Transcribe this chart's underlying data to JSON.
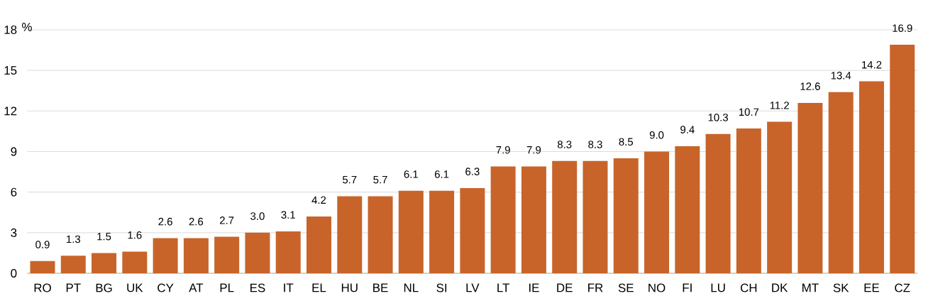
{
  "chart_data": {
    "type": "bar",
    "ylabel": "%",
    "categories": [
      "RO",
      "PT",
      "BG",
      "UK",
      "CY",
      "AT",
      "PL",
      "ES",
      "IT",
      "EL",
      "HU",
      "BE",
      "NL",
      "SI",
      "LV",
      "LT",
      "IE",
      "DE",
      "FR",
      "SE",
      "NO",
      "FI",
      "LU",
      "CH",
      "DK",
      "MT",
      "SK",
      "EE",
      "CZ"
    ],
    "values": [
      0.9,
      1.3,
      1.5,
      1.6,
      2.6,
      2.6,
      2.7,
      3.0,
      3.1,
      4.2,
      5.7,
      5.7,
      6.1,
      6.1,
      6.3,
      7.9,
      7.9,
      8.3,
      8.3,
      8.5,
      9.0,
      9.4,
      10.3,
      10.7,
      11.2,
      12.6,
      13.4,
      14.2,
      16.9
    ],
    "value_labels": [
      "0.9",
      "1.3",
      "1.5",
      "1.6",
      "2.6",
      "2.6",
      "2.7",
      "3.0",
      "3.1",
      "4.2",
      "5.7",
      "5.7",
      "6.1",
      "6.1",
      "6.3",
      "7.9",
      "7.9",
      "8.3",
      "8.3",
      "8.5",
      "9.0",
      "9.4",
      "10.3",
      "10.7",
      "11.2",
      "12.6",
      "13.4",
      "14.2",
      "16.9"
    ],
    "color": "#c8642a",
    "ylim": [
      0,
      18
    ],
    "yticks": [
      0,
      3,
      6,
      9,
      12,
      15,
      18
    ],
    "grid": "y"
  }
}
